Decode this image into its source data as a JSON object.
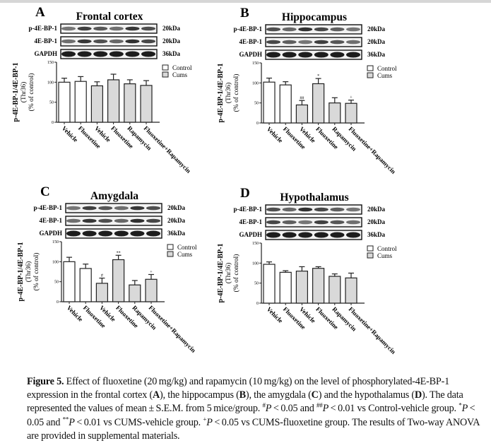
{
  "figure": {
    "common": {
      "blot_rows": [
        {
          "label": "p-4E-BP-1",
          "kda": "20kDa"
        },
        {
          "label": "4E-BP-1",
          "kda": "20kDa"
        },
        {
          "label": "GAPDH",
          "kda": "36kDa"
        }
      ],
      "legend": [
        {
          "label": "Control",
          "color": "#ffffff"
        },
        {
          "label": "Cums",
          "color": "#d9d9d9"
        }
      ]
    }
  },
  "chart_data": [
    {
      "type": "bar",
      "panel": "A",
      "title": "Frontal cortex",
      "categories": [
        "Vehicle",
        "Fluoxetine",
        "Vehicle",
        "Fluoxetine",
        "Rapamycin",
        "Fluoxetine+Rapamycin"
      ],
      "groups": [
        "Control",
        "Control",
        "Cums",
        "Cums",
        "Cums",
        "Cums"
      ],
      "values": [
        100,
        102,
        91,
        106,
        96,
        92
      ],
      "errors": [
        10,
        12,
        10,
        14,
        10,
        12
      ],
      "annotations": [
        "",
        "",
        "",
        "",
        "",
        ""
      ],
      "ylabel": [
        "p-4E-BP-1/4E-BP-1",
        "(Thr36)",
        "(% of control)"
      ],
      "yticks": [
        0,
        50,
        100,
        150
      ],
      "ylim": [
        0,
        150
      ]
    },
    {
      "type": "bar",
      "panel": "B",
      "title": "Hippocampus",
      "categories": [
        "Vehicle",
        "Fluoxetine",
        "Vehicle",
        "Fluoxetine",
        "Rapamycin",
        "Fluoxetine+Rapamycin"
      ],
      "groups": [
        "Control",
        "Control",
        "Cums",
        "Cums",
        "Cums",
        "Cums"
      ],
      "values": [
        102,
        95,
        45,
        98,
        50,
        49
      ],
      "errors": [
        10,
        8,
        11,
        13,
        13,
        8
      ],
      "annotations": [
        "",
        "",
        "##",
        "*",
        "",
        "+"
      ],
      "ylabel": [
        "p-4E-BP-1/4E-BP-1",
        "(Thr36)",
        "(% of control)"
      ],
      "yticks": [
        0,
        50,
        100,
        150
      ],
      "ylim": [
        0,
        150
      ]
    },
    {
      "type": "bar",
      "panel": "C",
      "title": "Amygdala",
      "categories": [
        "Vehicle",
        "Fluoxetine",
        "Vehicle",
        "Fluoxetine",
        "Rapamycin",
        "Fluoxetine+Rapamycin"
      ],
      "groups": [
        "Control",
        "Control",
        "Cums",
        "Cums",
        "Cums",
        "Cums"
      ],
      "values": [
        100,
        83,
        46,
        105,
        42,
        56
      ],
      "errors": [
        11,
        11,
        13,
        11,
        11,
        12
      ],
      "annotations": [
        "",
        "",
        "#",
        "**",
        "",
        "+"
      ],
      "ylabel": [
        "p-4E-BP-1/4E-BP-1",
        "(Thr36)",
        "(% of control)"
      ],
      "yticks": [
        0,
        50,
        100,
        150
      ],
      "ylim": [
        0,
        150
      ]
    },
    {
      "type": "bar",
      "panel": "D",
      "title": "Hypothalamus",
      "categories": [
        "Vehicle",
        "Fluoxetine",
        "Vehicle",
        "Fluoxetine",
        "Rapamycin",
        "Fluoxetine+Rapamycin"
      ],
      "groups": [
        "Control",
        "Control",
        "Cums",
        "Cums",
        "Cums",
        "Cums"
      ],
      "values": [
        97,
        77,
        80,
        87,
        67,
        63
      ],
      "errors": [
        6,
        4,
        11,
        4,
        6,
        12
      ],
      "annotations": [
        "",
        "",
        "",
        "",
        "",
        ""
      ],
      "ylabel": [
        "p-4E-BP-1/4E-BP-1",
        "(Thr36)",
        "(% of control)"
      ],
      "yticks": [
        0,
        50,
        100,
        150
      ],
      "ylim": [
        0,
        150
      ]
    }
  ],
  "caption": [
    {
      "t": "Figure 5.",
      "s": "b"
    },
    {
      "t": "  Effect of fluoxetine (20 mg/kg) and rapamycin (10 mg/kg) on the level of phosphorylated-4E-BP-1 expression in the frontal cortex (",
      "s": ""
    },
    {
      "t": "A",
      "s": "b"
    },
    {
      "t": "), the hippocampus (",
      "s": ""
    },
    {
      "t": "B",
      "s": "b"
    },
    {
      "t": "), the amygdala (",
      "s": ""
    },
    {
      "t": "C",
      "s": "b"
    },
    {
      "t": ") and the hypothalamus (",
      "s": ""
    },
    {
      "t": "D",
      "s": "b"
    },
    {
      "t": "). The data represented the values of mean ± S.E.M. from 5 mice/group. ",
      "s": ""
    },
    {
      "t": "#",
      "s": "sup"
    },
    {
      "t": "P",
      "s": "i"
    },
    {
      "t": " < 0.05 and ",
      "s": ""
    },
    {
      "t": "##",
      "s": "sup"
    },
    {
      "t": "P",
      "s": "i"
    },
    {
      "t": " < 0.01 vs Control-vehicle group. ",
      "s": ""
    },
    {
      "t": "*",
      "s": "sup"
    },
    {
      "t": "P",
      "s": "i"
    },
    {
      "t": " < 0.05 and ",
      "s": ""
    },
    {
      "t": "**",
      "s": "sup"
    },
    {
      "t": "P",
      "s": "i"
    },
    {
      "t": " < 0.01 vs CUMS-vehicle group. ",
      "s": ""
    },
    {
      "t": "+",
      "s": "sup"
    },
    {
      "t": "P",
      "s": "i"
    },
    {
      "t": " < 0.05 vs CUMS-fluoxetine group. The results of Two-way ANOVA are provided in supplemental materials.",
      "s": ""
    }
  ]
}
